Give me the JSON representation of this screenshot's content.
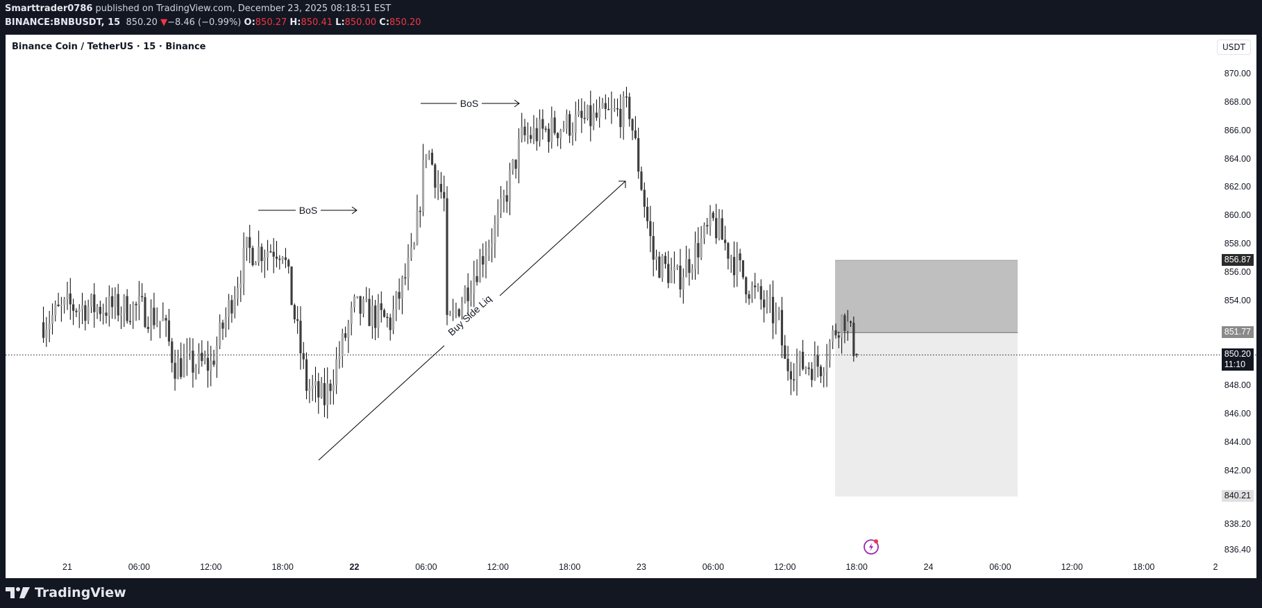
{
  "header": {
    "author": "Smarttrader0786",
    "published_text": " published on TradingView.com, December 23, 2025 08:18:51 EST",
    "symbol": "BINANCE:BNBUSDT, 15",
    "last": "850.20",
    "change_arrow": "▼",
    "change": "−8.46 (−0.99%)",
    "o_label": "O:",
    "o": "850.27",
    "h_label": "H:",
    "h": "850.41",
    "l_label": "L:",
    "l": "850.00",
    "c_label": "C:",
    "c": "850.20"
  },
  "chart": {
    "title": "Binance Coin / TetherUS · 15 · Binance",
    "currency_button": "USDT",
    "colors": {
      "up": "#a6a6a6",
      "down": "#3d3d3d",
      "wick": "#000000",
      "bg": "#ffffff",
      "frame": "#131722"
    },
    "price_ticks": [
      "870.00",
      "868.00",
      "866.00",
      "864.00",
      "862.00",
      "860.00",
      "858.00",
      "856.00",
      "854.00",
      "848.00",
      "846.00",
      "844.00",
      "842.00",
      "838.20",
      "836.40"
    ],
    "price_labels": [
      {
        "value": "856.87",
        "style": "dark"
      },
      {
        "value": "851.77",
        "style": "gray"
      },
      {
        "value": "850.20",
        "sub": "11:10",
        "style": "current"
      },
      {
        "value": "840.21",
        "style": "light"
      }
    ],
    "time_ticks": [
      {
        "label": "21",
        "bold": false
      },
      {
        "label": "06:00"
      },
      {
        "label": "12:00"
      },
      {
        "label": "18:00"
      },
      {
        "label": "22",
        "bold": true
      },
      {
        "label": "06:00"
      },
      {
        "label": "12:00"
      },
      {
        "label": "18:00"
      },
      {
        "label": "23",
        "bold": false
      },
      {
        "label": "06:00"
      },
      {
        "label": "12:00"
      },
      {
        "label": "18:00"
      },
      {
        "label": "24",
        "bold": false
      },
      {
        "label": "06:00"
      },
      {
        "label": "12:00"
      },
      {
        "label": "18:00"
      },
      {
        "label": "2",
        "bold": false
      }
    ],
    "annotations": [
      {
        "type": "bos",
        "label": "BoS",
        "price": 860.0
      },
      {
        "type": "bos",
        "label": "BoS",
        "price": 867.7
      },
      {
        "type": "trendline",
        "label": "Buy Side Liq"
      }
    ],
    "position_tool": {
      "stop": "856.87",
      "entry": "851.77",
      "target": "840.21"
    },
    "current_price": "850.20",
    "countdown": "11:10"
  },
  "footer": {
    "brand": "TradingView"
  },
  "chart_data": {
    "type": "candlestick",
    "title": "Binance Coin / TetherUS · 15 · Binance",
    "xlabel": "",
    "ylabel": "USDT",
    "ylim": [
      836.4,
      871.0
    ],
    "x_ticks": [
      "21",
      "06:00",
      "12:00",
      "18:00",
      "22",
      "06:00",
      "12:00",
      "18:00",
      "23",
      "06:00",
      "12:00",
      "18:00",
      "24",
      "06:00",
      "12:00",
      "18:00",
      "2"
    ],
    "y_ticks": [
      836.4,
      838.2,
      840,
      842,
      844,
      846,
      848,
      850,
      852,
      854,
      856,
      858,
      860,
      862,
      864,
      866,
      868,
      870
    ],
    "close_path": [
      {
        "t": "Dec 20 ~22:00",
        "close": 852.5
      },
      {
        "t": "Dec 21 00:00",
        "close": 853.6
      },
      {
        "t": "Dec 21 06:00",
        "close": 853.5
      },
      {
        "t": "Dec 21 08:00",
        "close": 852.5
      },
      {
        "t": "Dec 21 09:00",
        "close": 849.5
      },
      {
        "t": "Dec 21 12:00",
        "close": 849.5
      },
      {
        "t": "Dec 21 15:00",
        "close": 857.5
      },
      {
        "t": "Dec 21 18:00",
        "close": 857.8
      },
      {
        "t": "Dec 21 20:00",
        "close": 848.0
      },
      {
        "t": "Dec 21 21:30",
        "close": 847.0
      },
      {
        "t": "Dec 22 00:00",
        "close": 853.5
      },
      {
        "t": "Dec 22 03:00",
        "close": 852.5
      },
      {
        "t": "Dec 22 05:00",
        "close": 857.5
      },
      {
        "t": "Dec 22 06:00",
        "close": 865.0
      },
      {
        "t": "Dec 22 07:30",
        "close": 861.0
      },
      {
        "t": "Dec 22 07:45",
        "close": 852.0
      },
      {
        "t": "Dec 22 12:00",
        "close": 859.5
      },
      {
        "t": "Dec 22 14:00",
        "close": 865.5
      },
      {
        "t": "Dec 22 18:00",
        "close": 866.5
      },
      {
        "t": "Dec 22 20:00",
        "close": 866.8
      },
      {
        "t": "Dec 22 23:00",
        "close": 867.5
      },
      {
        "t": "Dec 23 01:00",
        "close": 857.0
      },
      {
        "t": "Dec 23 03:00",
        "close": 855.5
      },
      {
        "t": "Dec 23 06:00",
        "close": 859.5
      },
      {
        "t": "Dec 23 09:00",
        "close": 855.0
      },
      {
        "t": "Dec 23 11:30",
        "close": 852.5
      },
      {
        "t": "Dec 23 12:00",
        "close": 849.5
      },
      {
        "t": "Dec 23 15:00",
        "close": 849.5
      },
      {
        "t": "Dec 23 16:30",
        "close": 852.5
      },
      {
        "t": "Dec 23 17:00",
        "close": 852.8
      },
      {
        "t": "Dec 23 18:00",
        "close": 850.2
      }
    ],
    "last": {
      "open": 850.27,
      "high": 850.41,
      "low": 850.0,
      "close": 850.2
    },
    "annotations": [
      "BoS @ ~860",
      "BoS @ ~867.7",
      "Buy Side Liq trendline 843 → 862.5"
    ],
    "position": {
      "stop": 856.87,
      "entry": 851.77,
      "target": 840.21
    }
  }
}
